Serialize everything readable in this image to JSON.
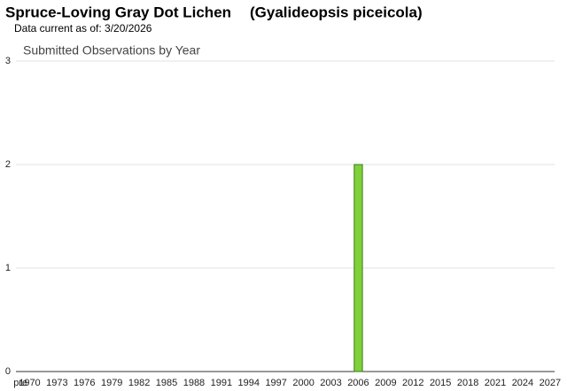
{
  "chart_data": {
    "type": "bar",
    "title": "Spruce-Loving Gray Dot Lichen",
    "scientific_name": "(Gyalideopsis piceicola)",
    "subtitle": "Data current as of: 3/20/2026",
    "chart_title": "Submitted Observations by Year",
    "categories": [
      "pre",
      "1970",
      null,
      null,
      "1973",
      null,
      null,
      "1976",
      null,
      null,
      "1979",
      null,
      null,
      "1982",
      null,
      null,
      "1985",
      null,
      null,
      "1988",
      null,
      null,
      "1991",
      null,
      null,
      "1994",
      null,
      null,
      "1997",
      null,
      null,
      "2000",
      null,
      null,
      "2003",
      null,
      null,
      "2006",
      null,
      null,
      "2009",
      null,
      null,
      "2012",
      null,
      null,
      "2015",
      null,
      null,
      "2018",
      null,
      null,
      "2021",
      null,
      null,
      "2024",
      null,
      null,
      "2027"
    ],
    "values": [
      0,
      0,
      0,
      0,
      0,
      0,
      0,
      0,
      0,
      0,
      0,
      0,
      0,
      0,
      0,
      0,
      0,
      0,
      0,
      0,
      0,
      0,
      0,
      0,
      0,
      0,
      0,
      0,
      0,
      0,
      0,
      0,
      0,
      0,
      0,
      0,
      0,
      2,
      0,
      0,
      0,
      0,
      0,
      0,
      0,
      0,
      0,
      0,
      0,
      0,
      0,
      0,
      0,
      0,
      0,
      0,
      0,
      0,
      0
    ],
    "color": "#7ed13a",
    "ylim": [
      0,
      3
    ],
    "yticks": [
      0,
      1,
      2,
      3
    ],
    "grid": true
  }
}
